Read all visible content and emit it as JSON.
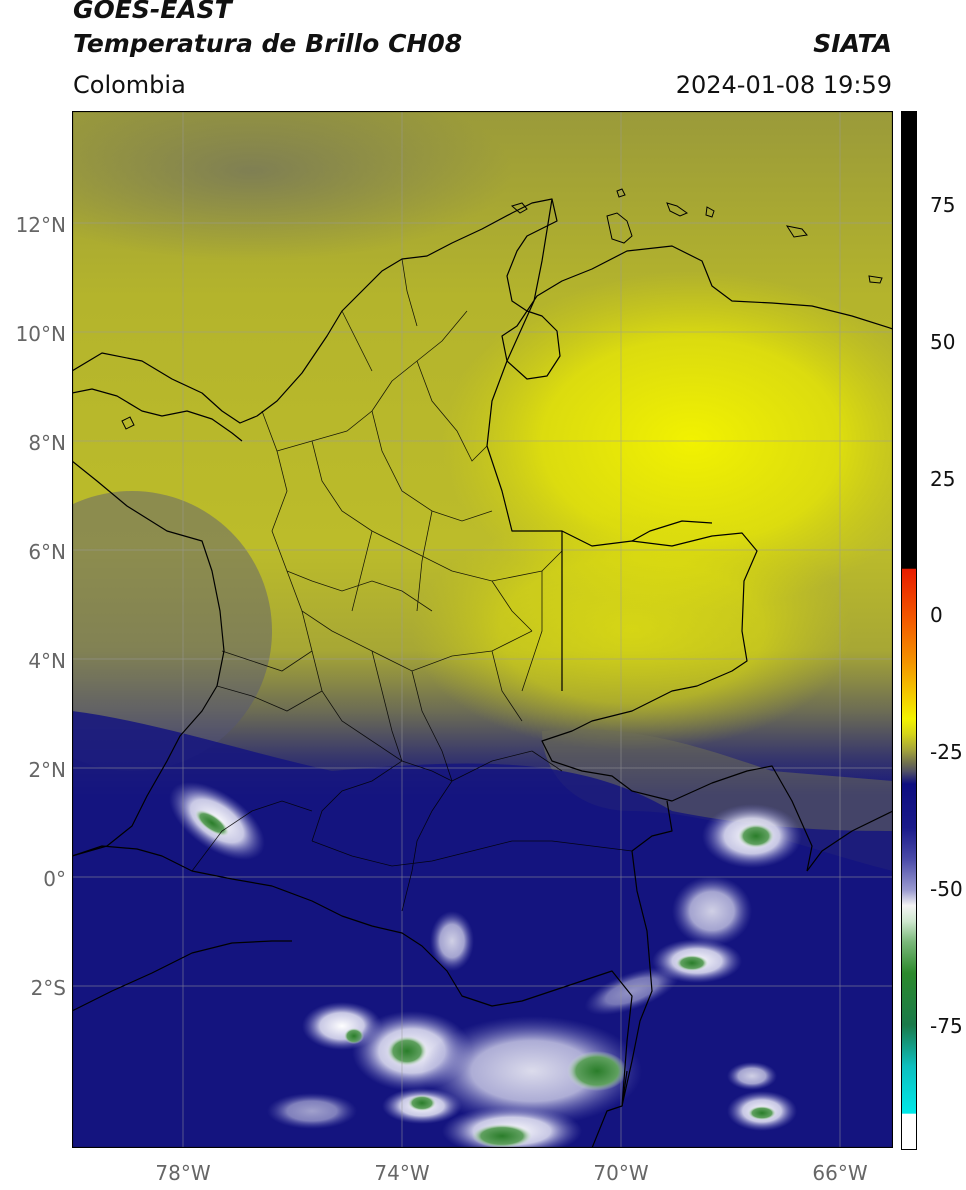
{
  "header": {
    "satellite": "GOES-EAST",
    "product": "Temperatura de Brillo CH08",
    "agency": "SIATA",
    "region": "Colombia",
    "datetime": "2024-01-08 19:59"
  },
  "map": {
    "lat_labels": [
      "12°N",
      "10°N",
      "8°N",
      "6°N",
      "4°N",
      "2°N",
      "0°",
      "2°S"
    ],
    "lon_labels": [
      "78°W",
      "74°W",
      "70°W",
      "66°W"
    ],
    "gridlines": true,
    "extent": {
      "lon_min": -80,
      "lon_max": -65,
      "lat_min": -5,
      "lat_max": 14
    }
  },
  "colorbar": {
    "tick_labels": [
      "75",
      "50",
      "25",
      "0",
      "-25",
      "-50",
      "-75"
    ],
    "colors": {
      "warm_black": "#000000",
      "red": "#e81c00",
      "orange": "#f39300",
      "yellow": "#f3f300",
      "olive": "#a5a53a",
      "gray": "#4f4f66",
      "navy": "#0d0d80",
      "white": "#f4f4f4",
      "green": "#2c8a2c",
      "teal": "#0dbfbf",
      "cyan": "#00e8e8"
    }
  }
}
